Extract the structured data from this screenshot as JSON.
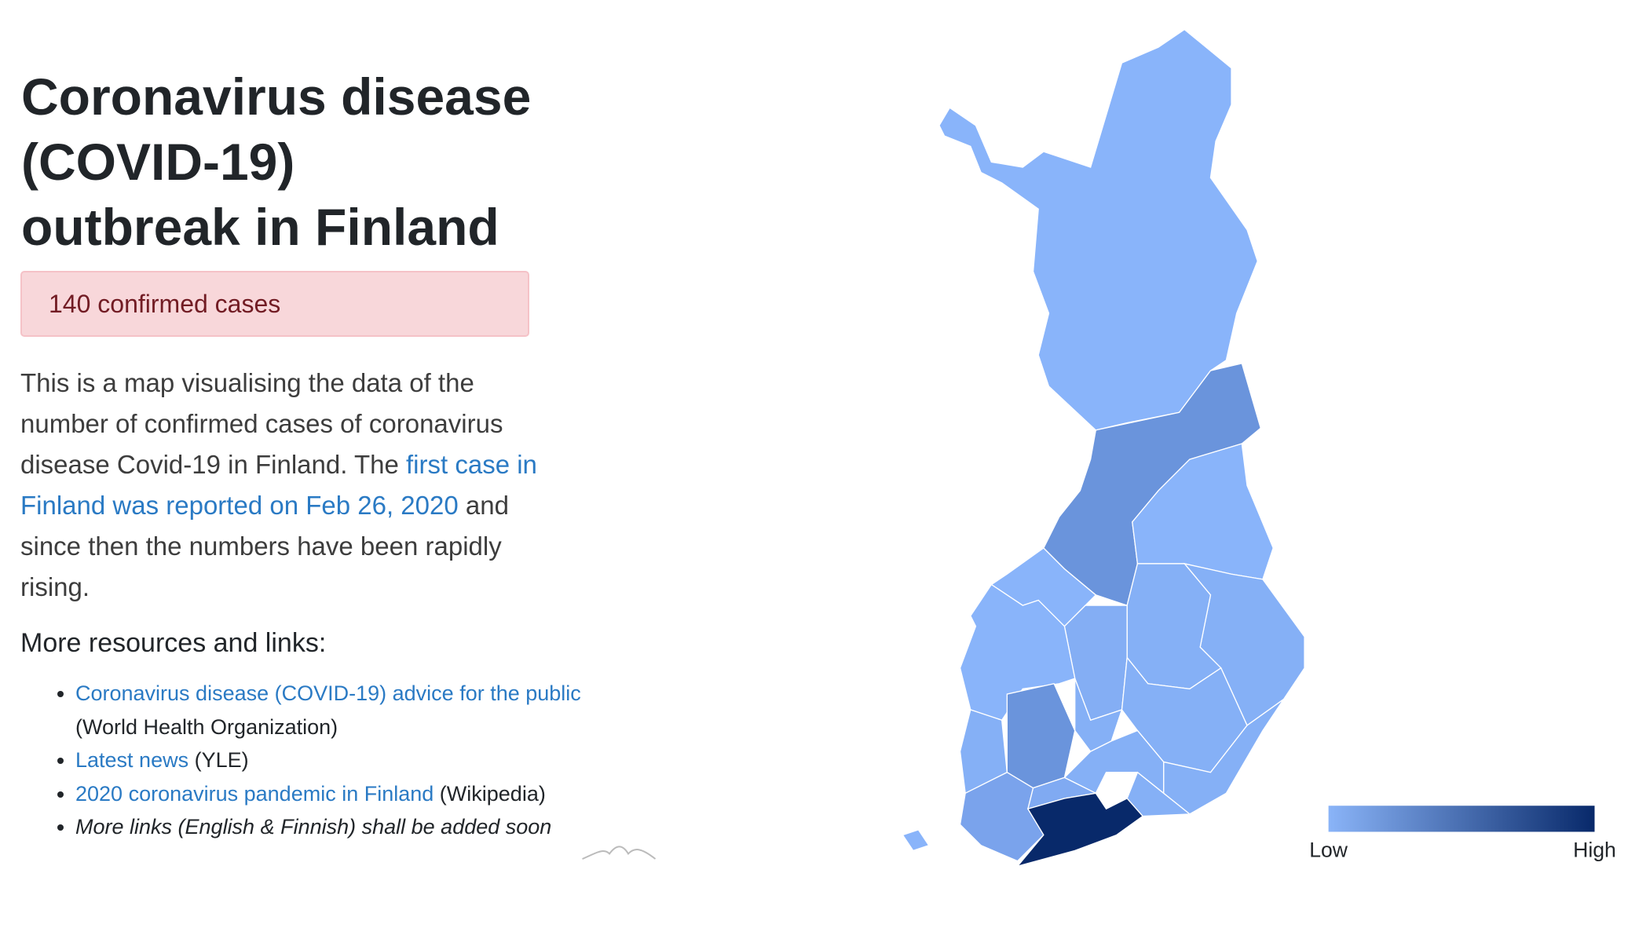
{
  "header": {
    "title": [
      "Coronavirus disease",
      "(COVID-19)",
      "outbreak in Finland"
    ]
  },
  "alert": "140 confirmed cases",
  "intro": {
    "before": "This is a map visualising the data of the number of confirmed cases of coronavirus disease Covid-19 in Finland. The",
    "link": "first case in Finland was reported on Feb 26, 2020",
    "after": "and since then the numbers have been rapidly rising."
  },
  "resources": {
    "heading": "More resources and links:",
    "items": [
      {
        "link": "Coronavirus disease (COVID-19) advice for the public",
        "source": "(World Health Organization)"
      },
      {
        "link": "Latest news",
        "source": "(YLE)"
      },
      {
        "link": "2020 coronavirus pandemic in Finland",
        "source": "(Wikipedia)"
      },
      {
        "note": "More links (English & Finnish) shall be added soon"
      }
    ]
  },
  "legend": {
    "low": "Low",
    "high": "High"
  }
}
